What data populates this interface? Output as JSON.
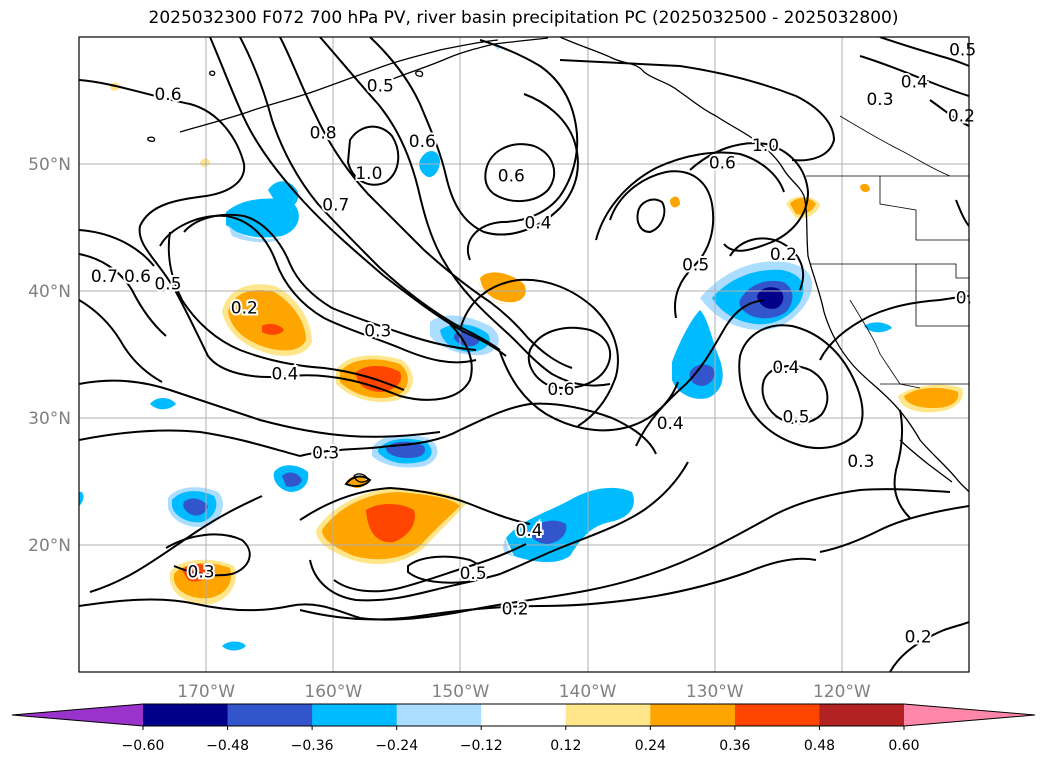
{
  "title": "2025032300 F072 700 hPa PV, river basin precipitation PC (2025032500 - 2025032800)",
  "axes": {
    "lon_ticks": [
      {
        "value": -170,
        "label": "170°W"
      },
      {
        "value": -160,
        "label": "160°W"
      },
      {
        "value": -150,
        "label": "150°W"
      },
      {
        "value": -140,
        "label": "140°W"
      },
      {
        "value": -130,
        "label": "130°W"
      },
      {
        "value": -120,
        "label": "120°W"
      }
    ],
    "lat_ticks": [
      {
        "value": 50,
        "label": "50°N"
      },
      {
        "value": 40,
        "label": "40°N"
      },
      {
        "value": 30,
        "label": "30°N"
      },
      {
        "value": 20,
        "label": "20°N"
      }
    ],
    "lon_range": [
      -180,
      -110
    ],
    "lat_range": [
      10,
      60
    ],
    "grid": true
  },
  "contour_labels": [
    {
      "text": "0.5",
      "lon": -156.3,
      "lat": 56.2
    },
    {
      "text": "0.6",
      "lon": -173.0,
      "lat": 55.5
    },
    {
      "text": "0.8",
      "lon": -160.8,
      "lat": 52.5
    },
    {
      "text": "1.0",
      "lon": -157.2,
      "lat": 49.3
    },
    {
      "text": "0.6",
      "lon": -153.0,
      "lat": 51.8
    },
    {
      "text": "0.7",
      "lon": -159.8,
      "lat": 46.8
    },
    {
      "text": "0.6",
      "lon": -146.0,
      "lat": 49.1
    },
    {
      "text": "0.4",
      "lon": -143.9,
      "lat": 45.4
    },
    {
      "text": "0.6",
      "lon": -129.4,
      "lat": 50.1
    },
    {
      "text": "1.0",
      "lon": -126.0,
      "lat": 51.5
    },
    {
      "text": "0.5",
      "lon": -131.5,
      "lat": 42.1
    },
    {
      "text": "0.2",
      "lon": -124.6,
      "lat": 42.9
    },
    {
      "text": "0.7",
      "lon": -178.0,
      "lat": 41.2
    },
    {
      "text": "0.6",
      "lon": -175.4,
      "lat": 41.2
    },
    {
      "text": "0.5",
      "lon": -173.0,
      "lat": 40.6
    },
    {
      "text": "0.2",
      "lon": -167.0,
      "lat": 38.7
    },
    {
      "text": "0.3",
      "lon": -156.5,
      "lat": 36.9
    },
    {
      "text": "0.4",
      "lon": -163.8,
      "lat": 33.5
    },
    {
      "text": "0.6",
      "lon": -142.1,
      "lat": 32.3
    },
    {
      "text": "0.4",
      "lon": -124.4,
      "lat": 34.0
    },
    {
      "text": "0.5",
      "lon": -123.6,
      "lat": 30.1
    },
    {
      "text": "0.4",
      "lon": -133.5,
      "lat": 29.6
    },
    {
      "text": "0.3",
      "lon": -160.6,
      "lat": 27.3
    },
    {
      "text": "0.3",
      "lon": -118.5,
      "lat": 26.6
    },
    {
      "text": "0.4",
      "lon": -144.6,
      "lat": 21.2
    },
    {
      "text": "0.3",
      "lon": -170.4,
      "lat": 17.9
    },
    {
      "text": "0.5",
      "lon": -149.0,
      "lat": 17.8
    },
    {
      "text": "0.2",
      "lon": -145.7,
      "lat": 15.0
    },
    {
      "text": "0.2",
      "lon": -114.0,
      "lat": 12.8
    },
    {
      "text": "0.4",
      "lon": -114.3,
      "lat": 56.5
    },
    {
      "text": "0.3",
      "lon": -117.0,
      "lat": 55.1
    },
    {
      "text": "0.5",
      "lon": -110.5,
      "lat": 59.0
    },
    {
      "text": "0.2",
      "lon": -110.6,
      "lat": 53.8
    },
    {
      "text": "0.",
      "lon": -110.4,
      "lat": 39.5
    }
  ],
  "colorbar": {
    "levels": [
      -0.72,
      -0.6,
      -0.48,
      -0.36,
      -0.24,
      -0.12,
      0.12,
      0.24,
      0.36,
      0.48,
      0.6,
      0.72
    ],
    "colors": [
      "#9933cc",
      "#00008b",
      "#3355cc",
      "#00bbff",
      "#aaddff",
      "#ffffff",
      "#ffe68a",
      "#ffa500",
      "#ff4500",
      "#b22222",
      "#ff88aa"
    ],
    "extend_under_color": "#9933cc",
    "extend_over_color": "#ff88aa",
    "tick_labels": [
      "−0.60",
      "−0.48",
      "−0.36",
      "−0.24",
      "−0.12",
      "0.12",
      "0.24",
      "0.36",
      "0.48",
      "0.60"
    ]
  }
}
